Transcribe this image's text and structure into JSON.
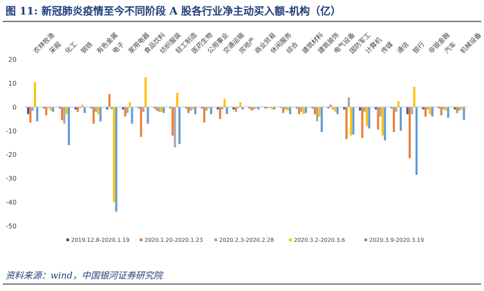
{
  "figure": {
    "title": "图 11:  新冠肺炎疫情至今不同阶段 A 股各行业净主动买入额-机构（亿）",
    "source": "资料来源：wind，中国银河证券研究院"
  },
  "colors": {
    "title_text": "#1f3d7a",
    "series": [
      "#2e5aa8",
      "#ec7c30",
      "#a5a5a5",
      "#ffc000",
      "#5b9bd5"
    ]
  },
  "chart_data": {
    "type": "bar",
    "ylim": [
      -50,
      20
    ],
    "yticks": [
      -50,
      -40,
      -30,
      -20,
      -10,
      0,
      10,
      20
    ],
    "grid": false,
    "legend_position": "bottom",
    "categories": [
      "农林牧渔",
      "采掘",
      "化工",
      "钢铁",
      "有色金属",
      "电子",
      "家用电器",
      "食品饮料",
      "纺织服装",
      "轻工制造",
      "医药生物",
      "公用事业",
      "交通运输",
      "房地产",
      "商业贸易",
      "休闲服务",
      "综合",
      "建筑材料",
      "建筑装饰",
      "电气设备",
      "国防军工",
      "计算机",
      "传媒",
      "通信",
      "银行",
      "非银金融",
      "汽车",
      "机械设备"
    ],
    "series": [
      {
        "name": "2019.12.8-2020.1.19",
        "values": [
          -3,
          -0.5,
          -0.5,
          -1,
          -0.5,
          -1,
          -1,
          -0.5,
          -0.5,
          -0.5,
          -0.5,
          -0.5,
          -1,
          -1,
          -0.5,
          -0.5,
          -0.3,
          -0.5,
          -0.5,
          -0.5,
          -1,
          -1.5,
          -1,
          -0.5,
          -3,
          -1,
          -0.5,
          -1
        ]
      },
      {
        "name": "2020.1.20-2020.1.23",
        "values": [
          -6.5,
          -3.5,
          -5.5,
          -2,
          -7,
          5.5,
          -4,
          -12.5,
          -1.5,
          -12,
          -2.5,
          -6.5,
          -5,
          -2,
          -1.5,
          -0.5,
          -2.5,
          -3,
          -3,
          1,
          -13.5,
          -13,
          -9.5,
          -10.5,
          -21.5,
          -4,
          -3.5,
          -2.5
        ]
      },
      {
        "name": "2020.2.3-2020.2.28",
        "values": [
          -1.5,
          -0.5,
          -7,
          -0.5,
          -2,
          -1,
          -2.5,
          -2,
          -2,
          -17,
          -1.5,
          -1.5,
          -1,
          -0.5,
          -1,
          -0.3,
          -1,
          -2,
          -6,
          -1,
          4,
          -2,
          -4,
          -2,
          -3,
          -1,
          -1,
          -1.5
        ]
      },
      {
        "name": "2020.3.2-2020.3.6",
        "values": [
          10.5,
          -1.5,
          -3,
          1,
          -3,
          -40,
          2,
          12.5,
          -2,
          6,
          -1,
          -0.5,
          3.5,
          2,
          -0.5,
          -1,
          -1.5,
          -3,
          -4,
          -2,
          -12,
          -8,
          -12,
          2.5,
          8.5,
          -3,
          -1.5,
          -1
        ]
      },
      {
        "name": "2020.3.9-2020.3.19",
        "values": [
          -6,
          -2,
          -16,
          -2.5,
          -6,
          -44,
          -7,
          -7,
          -2.5,
          -15.5,
          -3,
          -3,
          -3,
          -1,
          -1,
          -1,
          -3,
          -2.5,
          -10.5,
          -3,
          -11.5,
          -9,
          -14,
          -10,
          -28.5,
          -4,
          -4.5,
          -5.5
        ]
      }
    ]
  }
}
